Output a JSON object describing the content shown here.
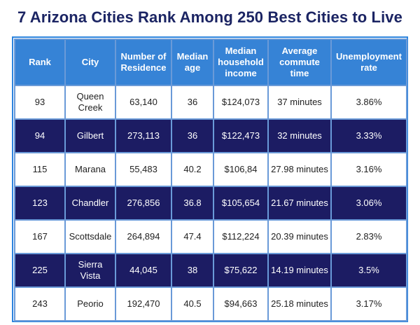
{
  "title": "7 Arizona Cities Rank Among 250 Best Cities to Live",
  "colors": {
    "title": "#1b2463",
    "header_bg": "#3683d6",
    "dark_row": "#1c1c63",
    "border": "#6a9ad8"
  },
  "headers": [
    "Rank",
    "City",
    "Number of Residence",
    "Median age",
    "Median household income",
    "Average commute time",
    "Unemployment rate"
  ],
  "rows": [
    [
      "93",
      "Queen Creek",
      "63,140",
      "36",
      "$124,073",
      "37 minutes",
      "3.86%"
    ],
    [
      "94",
      "Gilbert",
      "273,113",
      "36",
      "$122,473",
      "32 minutes",
      "3.33%"
    ],
    [
      "115",
      "Marana",
      "55,483",
      "40.2",
      "$106,84",
      "27.98 minutes",
      "3.16%"
    ],
    [
      "123",
      "Chandler",
      "276,856",
      "36.8",
      "$105,654",
      "21.67 minutes",
      "3.06%"
    ],
    [
      "167",
      "Scottsdale",
      "264,894",
      "47.4",
      "$112,224",
      "20.39 minutes",
      "2.83%"
    ],
    [
      "225",
      "Sierra Vista",
      "44,045",
      "38",
      "$75,622",
      "14.19 minutes",
      "3.5%"
    ],
    [
      "243",
      "Peorio",
      "192,470",
      "40.5",
      "$94,663",
      "25.18 minutes",
      "3.17%"
    ]
  ]
}
